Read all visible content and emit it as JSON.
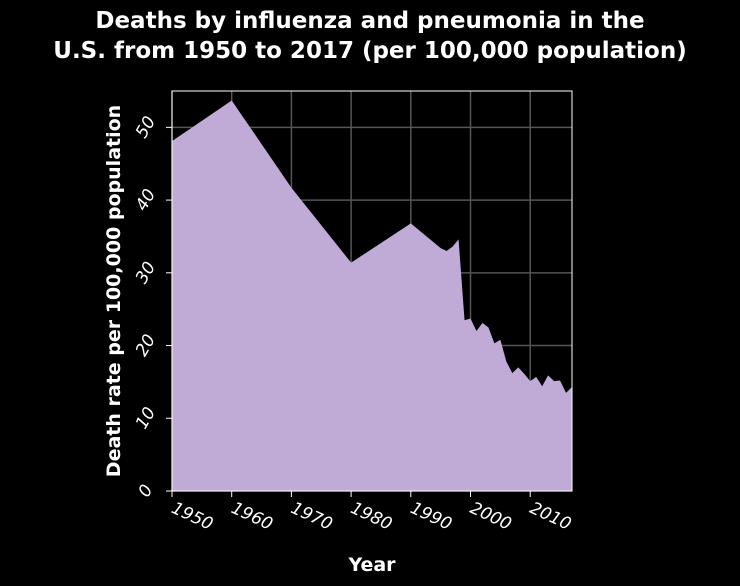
{
  "chart_data": {
    "type": "area",
    "title_line1": "Deaths by influenza and pneumonia in the",
    "title_line2": "U.S. from 1950 to 2017 (per 100,000 population)",
    "xlabel": "Year",
    "ylabel": "Death rate per 100,000 population",
    "xlim": [
      1950,
      2017
    ],
    "ylim": [
      0,
      55
    ],
    "xticks": [
      1950,
      1960,
      1970,
      1980,
      1990,
      2000,
      2010
    ],
    "yticks": [
      0,
      10,
      20,
      30,
      40,
      50
    ],
    "grid": true,
    "colors": {
      "fill": "#c0aad6",
      "background": "#000000",
      "grid": "#555555",
      "text": "#ffffff"
    },
    "series": [
      {
        "x": [
          1950,
          1960,
          1970,
          1980,
          1990,
          1995,
          1996,
          1997,
          1998,
          1999,
          2000,
          2001,
          2002,
          2003,
          2004,
          2005,
          2006,
          2007,
          2008,
          2009,
          2010,
          2011,
          2012,
          2013,
          2014,
          2015,
          2016,
          2017
        ],
        "values": [
          48.1,
          53.7,
          41.7,
          31.4,
          36.8,
          33.4,
          33.0,
          33.6,
          34.6,
          23.5,
          23.7,
          22.0,
          23.1,
          22.5,
          20.3,
          20.8,
          17.8,
          16.2,
          17.0,
          16.1,
          15.1,
          15.7,
          14.4,
          15.9,
          15.1,
          15.2,
          13.5,
          14.3
        ]
      }
    ]
  }
}
